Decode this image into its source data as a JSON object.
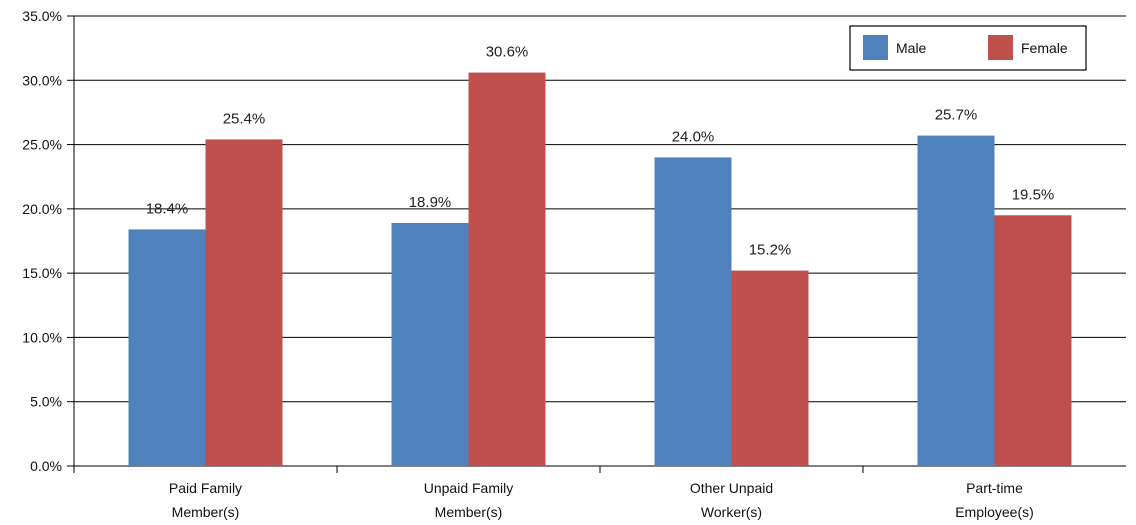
{
  "chart_data": {
    "type": "bar",
    "categories": [
      [
        "Paid Family",
        "Member(s)"
      ],
      [
        "Unpaid Family",
        "Member(s)"
      ],
      [
        "Other Unpaid",
        "Worker(s)"
      ],
      [
        "Part-time",
        "Employee(s)"
      ]
    ],
    "series": [
      {
        "name": "Male",
        "values": [
          18.4,
          18.9,
          24.0,
          25.7
        ],
        "labels": [
          "18.4%",
          "18.9%",
          "24.0%",
          "25.7%"
        ],
        "color": "#4f81bd"
      },
      {
        "name": "Female",
        "values": [
          25.4,
          30.6,
          15.2,
          19.5
        ],
        "labels": [
          "25.4%",
          "30.6%",
          "15.2%",
          "19.5%"
        ],
        "color": "#c0504d"
      }
    ],
    "ylim": [
      0,
      35
    ],
    "yticks": [
      0,
      5,
      10,
      15,
      20,
      25,
      30,
      35
    ],
    "ytick_labels": [
      "0.0%",
      "5.0%",
      "10.0%",
      "15.0%",
      "20.0%",
      "25.0%",
      "30.0%",
      "35.0%"
    ],
    "grid": true,
    "legend_position": "top-right"
  }
}
